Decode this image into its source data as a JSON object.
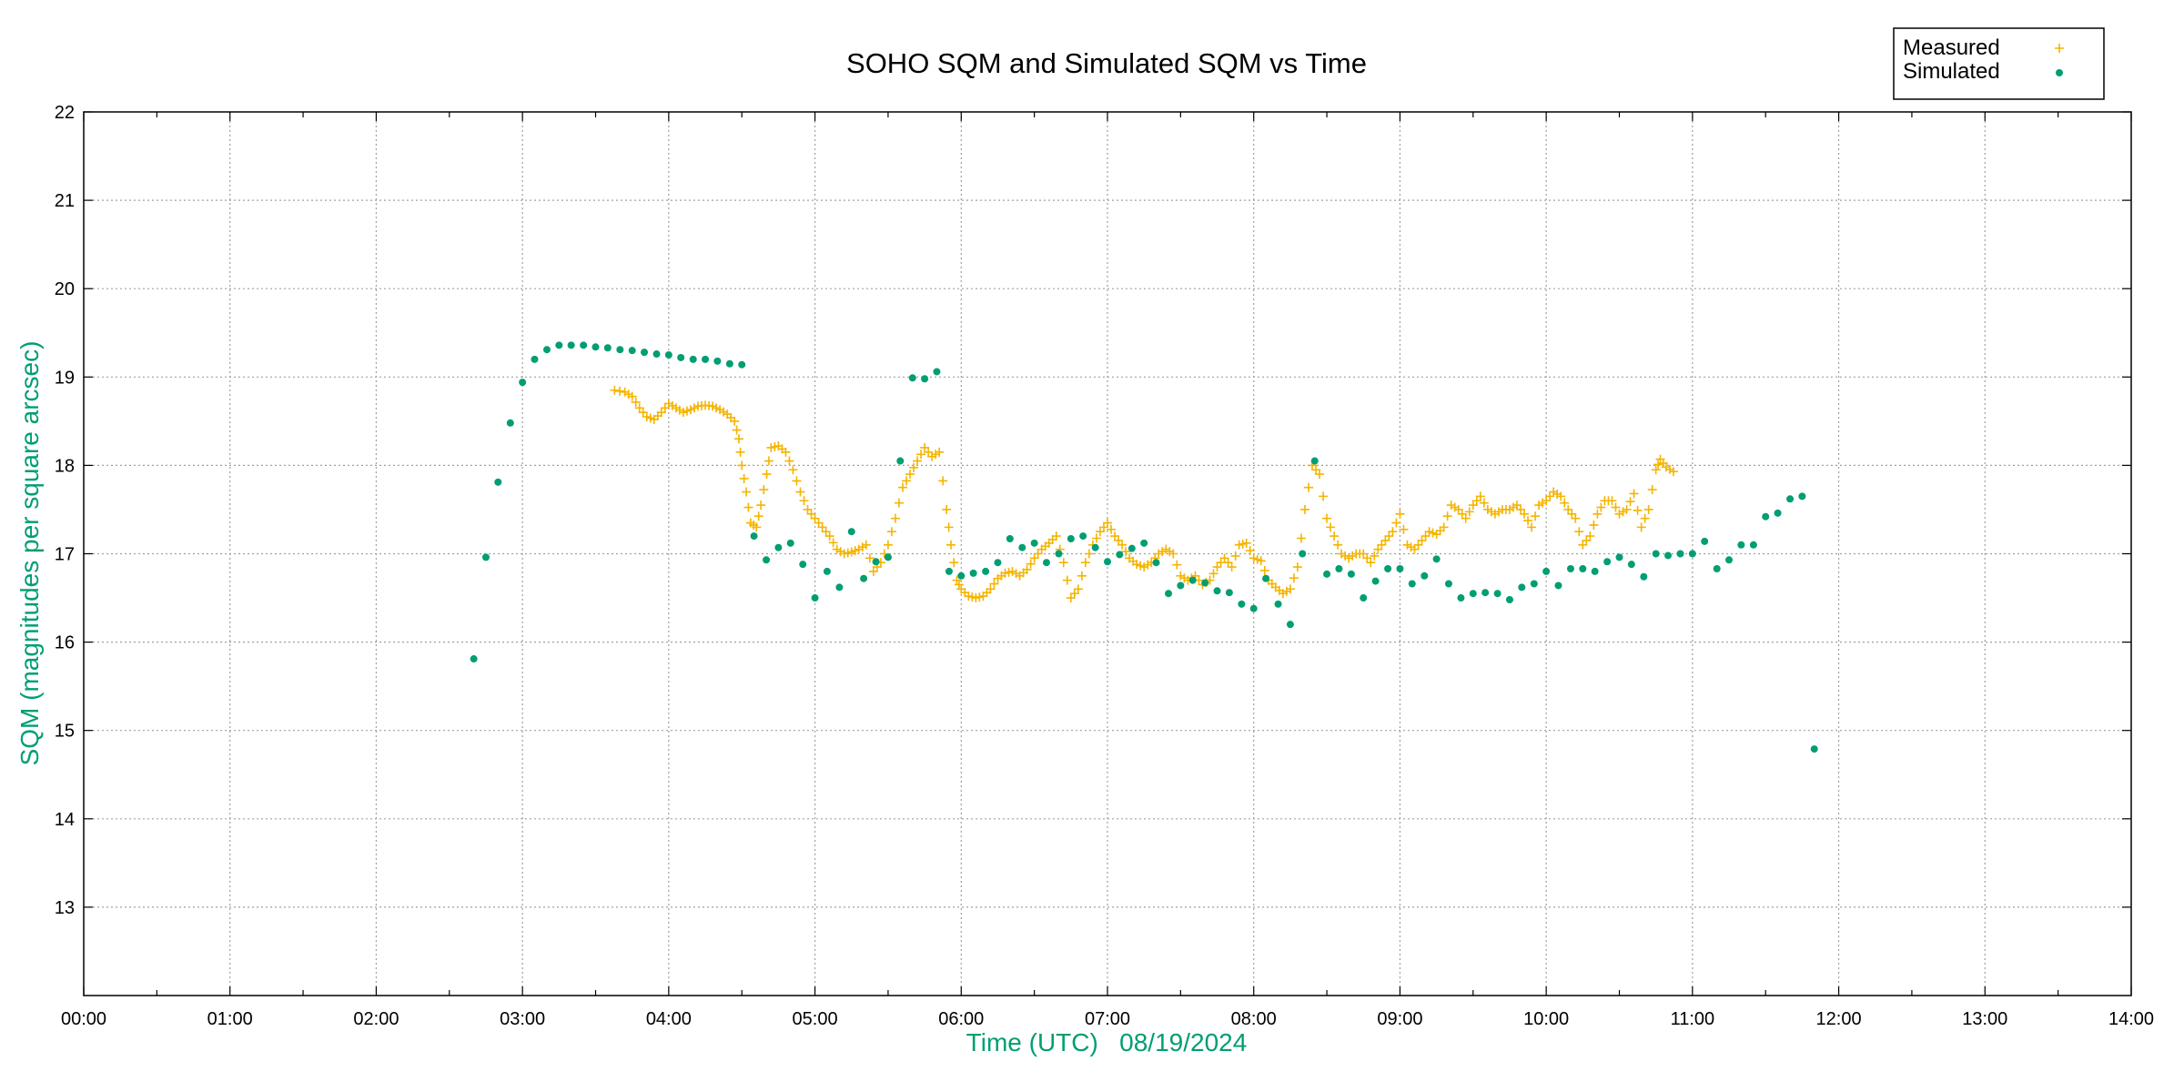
{
  "chart_data": {
    "type": "scatter",
    "title": "SOHO SQM and Simulated SQM vs Time",
    "xlabel": "Time (UTC)   08/19/2024",
    "ylabel": "SQM (magnitudes per square arcsec)",
    "xlim": [
      0,
      14
    ],
    "ylim": [
      12,
      22
    ],
    "x_ticks": [
      "00:00",
      "01:00",
      "02:00",
      "03:00",
      "04:00",
      "05:00",
      "06:00",
      "07:00",
      "08:00",
      "09:00",
      "10:00",
      "11:00",
      "12:00",
      "13:00",
      "14:00"
    ],
    "y_ticks": [
      "13",
      "14",
      "15",
      "16",
      "17",
      "18",
      "19",
      "20",
      "21",
      "22"
    ],
    "grid": true,
    "legend": {
      "placement": "top-right",
      "entries": [
        "Measured",
        "Simulated"
      ]
    },
    "colors": {
      "measured": "#f5b400",
      "simulated": "#009e73",
      "ylabel": "#009e73",
      "xlabel": "#009e73"
    },
    "series": [
      {
        "name": "Measured",
        "marker": "plus",
        "x": [
          3.63,
          3.7,
          3.75,
          3.8,
          3.85,
          3.9,
          3.95,
          4.0,
          4.05,
          4.1,
          4.15,
          4.2,
          4.25,
          4.3,
          4.35,
          4.4,
          4.45,
          4.48,
          4.5,
          4.53,
          4.56,
          4.6,
          4.63,
          4.67,
          4.7,
          4.75,
          4.8,
          4.85,
          4.9,
          4.95,
          5.0,
          5.05,
          5.1,
          5.15,
          5.2,
          5.25,
          5.3,
          5.35,
          5.4,
          5.45,
          5.5,
          5.55,
          5.6,
          5.65,
          5.7,
          5.75,
          5.8,
          5.85,
          5.9,
          5.93,
          5.97,
          6.0,
          6.05,
          6.1,
          6.15,
          6.2,
          6.25,
          6.3,
          6.35,
          6.4,
          6.45,
          6.5,
          6.55,
          6.6,
          6.65,
          6.7,
          6.75,
          6.8,
          6.85,
          6.9,
          6.95,
          7.0,
          7.05,
          7.1,
          7.15,
          7.2,
          7.25,
          7.3,
          7.35,
          7.4,
          7.45,
          7.5,
          7.55,
          7.6,
          7.65,
          7.7,
          7.75,
          7.8,
          7.85,
          7.9,
          7.95,
          8.0,
          8.05,
          8.1,
          8.15,
          8.2,
          8.25,
          8.3,
          8.35,
          8.4,
          8.45,
          8.5,
          8.55,
          8.6,
          8.65,
          8.7,
          8.75,
          8.8,
          8.85,
          8.9,
          8.95,
          9.0,
          9.05,
          9.1,
          9.15,
          9.2,
          9.25,
          9.3,
          9.35,
          9.4,
          9.45,
          9.5,
          9.55,
          9.6,
          9.65,
          9.7,
          9.75,
          9.8,
          9.85,
          9.9,
          9.95,
          10.0,
          10.05,
          10.1,
          10.15,
          10.2,
          10.25,
          10.3,
          10.35,
          10.4,
          10.45,
          10.5,
          10.55,
          10.6,
          10.65,
          10.7,
          10.75,
          10.78,
          10.82,
          10.87
        ],
        "y": [
          18.85,
          18.83,
          18.78,
          18.65,
          18.55,
          18.52,
          18.6,
          18.7,
          18.65,
          18.6,
          18.63,
          18.67,
          18.68,
          18.67,
          18.63,
          18.58,
          18.5,
          18.3,
          18.0,
          17.7,
          17.35,
          17.3,
          17.55,
          17.9,
          18.2,
          18.22,
          18.15,
          17.95,
          17.7,
          17.5,
          17.4,
          17.3,
          17.2,
          17.05,
          17.0,
          17.02,
          17.05,
          17.1,
          16.8,
          16.9,
          17.1,
          17.4,
          17.75,
          17.9,
          18.05,
          18.2,
          18.1,
          18.15,
          17.5,
          17.1,
          16.7,
          16.6,
          16.52,
          16.5,
          16.52,
          16.6,
          16.72,
          16.78,
          16.8,
          16.75,
          16.82,
          16.95,
          17.05,
          17.12,
          17.2,
          16.9,
          16.5,
          16.6,
          16.9,
          17.1,
          17.25,
          17.35,
          17.2,
          17.1,
          16.95,
          16.88,
          16.85,
          16.9,
          17.0,
          17.05,
          17.0,
          16.75,
          16.7,
          16.75,
          16.65,
          16.7,
          16.85,
          16.95,
          16.85,
          17.1,
          17.12,
          16.95,
          16.92,
          16.7,
          16.62,
          16.55,
          16.6,
          16.85,
          17.5,
          18.0,
          17.9,
          17.4,
          17.2,
          17.0,
          16.95,
          17.0,
          17.0,
          16.9,
          17.05,
          17.15,
          17.25,
          17.45,
          17.1,
          17.05,
          17.15,
          17.25,
          17.22,
          17.3,
          17.55,
          17.5,
          17.4,
          17.55,
          17.65,
          17.5,
          17.45,
          17.5,
          17.5,
          17.55,
          17.45,
          17.3,
          17.55,
          17.6,
          17.7,
          17.65,
          17.5,
          17.4,
          17.1,
          17.2,
          17.45,
          17.6,
          17.6,
          17.45,
          17.5,
          17.68,
          17.3,
          17.5,
          17.95,
          18.07,
          17.98,
          17.93
        ]
      },
      {
        "name": "Simulated",
        "marker": "filled-circle",
        "x": [
          2.667,
          2.75,
          2.833,
          2.917,
          3.0,
          3.083,
          3.167,
          3.25,
          3.333,
          3.417,
          3.5,
          3.583,
          3.667,
          3.75,
          3.833,
          3.917,
          4.0,
          4.083,
          4.167,
          4.25,
          4.333,
          4.417,
          4.5,
          4.583,
          4.667,
          4.75,
          4.833,
          4.917,
          5.0,
          5.083,
          5.167,
          5.25,
          5.333,
          5.417,
          5.5,
          5.583,
          5.667,
          5.75,
          5.833,
          5.917,
          6.0,
          6.083,
          6.167,
          6.25,
          6.333,
          6.417,
          6.5,
          6.583,
          6.667,
          6.75,
          6.833,
          6.917,
          7.0,
          7.083,
          7.167,
          7.25,
          7.333,
          7.417,
          7.5,
          7.583,
          7.667,
          7.75,
          7.833,
          7.917,
          8.0,
          8.083,
          8.167,
          8.25,
          8.333,
          8.417,
          8.5,
          8.583,
          8.667,
          8.75,
          8.833,
          8.917,
          9.0,
          9.083,
          9.167,
          9.25,
          9.333,
          9.417,
          9.5,
          9.583,
          9.667,
          9.75,
          9.833,
          9.917,
          10.0,
          10.083,
          10.167,
          10.25,
          10.333,
          10.417,
          10.5,
          10.583,
          10.667,
          10.75,
          10.833,
          10.917,
          11.0,
          11.083,
          11.167,
          11.25,
          11.333,
          11.417,
          11.5,
          11.583,
          11.667,
          11.75,
          11.833
        ],
        "y": [
          15.81,
          16.96,
          17.81,
          18.48,
          18.94,
          19.2,
          19.31,
          19.36,
          19.36,
          19.36,
          19.34,
          19.33,
          19.31,
          19.3,
          19.28,
          19.26,
          19.25,
          19.22,
          19.2,
          19.2,
          19.18,
          19.15,
          19.14,
          17.2,
          16.93,
          17.07,
          17.12,
          16.88,
          16.5,
          16.8,
          16.62,
          17.25,
          16.72,
          16.91,
          16.96,
          18.05,
          18.99,
          18.98,
          19.06,
          16.8,
          16.75,
          16.78,
          16.8,
          16.9,
          17.17,
          17.07,
          17.12,
          16.9,
          17.0,
          17.17,
          17.2,
          17.07,
          16.91,
          16.99,
          17.06,
          17.12,
          16.9,
          16.55,
          16.64,
          16.7,
          16.67,
          16.58,
          16.56,
          16.43,
          16.38,
          16.72,
          16.43,
          16.2,
          17.0,
          18.05,
          16.77,
          16.83,
          16.77,
          16.5,
          16.69,
          16.83,
          16.83,
          16.66,
          16.75,
          16.94,
          16.66,
          16.5,
          16.55,
          16.56,
          16.55,
          16.48,
          16.62,
          16.66,
          16.8,
          16.64,
          16.83,
          16.83,
          16.8,
          16.91,
          16.96,
          16.88,
          16.74,
          17.0,
          16.98,
          17.0,
          17.0,
          17.14,
          16.83,
          16.93,
          17.1,
          17.1,
          17.42,
          17.46,
          17.62,
          17.65,
          14.79
        ]
      }
    ]
  }
}
